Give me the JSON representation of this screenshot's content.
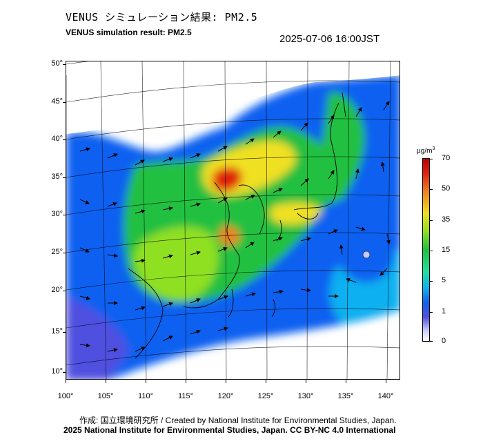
{
  "header": {
    "title_jp": "VENUS シミュレーション結果: PM2.5",
    "title_en": "VENUS simulation result: PM2.5",
    "timestamp": "2025-07-06 16:00JST"
  },
  "map": {
    "lat_labels": [
      "50°",
      "45°",
      "40°",
      "35°",
      "30°",
      "25°",
      "20°",
      "15°",
      "10°"
    ],
    "lon_labels": [
      "100°",
      "105°",
      "110°",
      "115°",
      "120°",
      "125°",
      "130°",
      "135°",
      "140°"
    ],
    "region": "East Asia",
    "layer": "PM2.5 concentration with wind vectors"
  },
  "colorbar": {
    "unit_main": "μg/m",
    "unit_sup": "3",
    "labels": [
      "70",
      "50",
      "35",
      "15",
      "5",
      "1",
      "0"
    ]
  },
  "footer": {
    "credit": "作成: 国立環境研究所 / Created by National Institute for Environmental Studies, Japan.",
    "license": "2025 National Institute for Environmental Studies, Japan. CC BY-NC 4.0 International"
  },
  "colors": {
    "low": "#1060f0",
    "mid": "#20c040",
    "high": "#f0e020",
    "peak": "#e02010"
  }
}
